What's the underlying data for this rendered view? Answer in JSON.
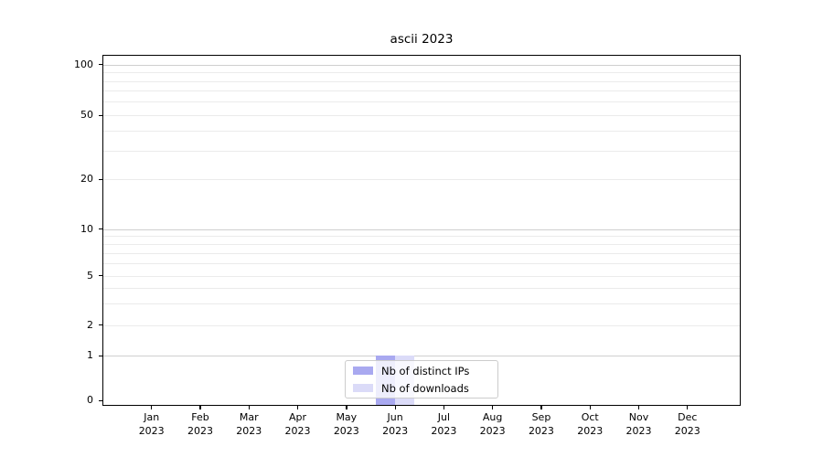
{
  "chart_data": {
    "type": "bar",
    "title": "ascii 2023",
    "x_tick_months": [
      "Jan",
      "Feb",
      "Mar",
      "Apr",
      "May",
      "Jun",
      "Jul",
      "Aug",
      "Sep",
      "Oct",
      "Nov",
      "Dec"
    ],
    "x_tick_year": "2023",
    "y_ticks": [
      0,
      1,
      2,
      5,
      10,
      20,
      50,
      100
    ],
    "y_minor_ticks": [
      3,
      4,
      6,
      7,
      8,
      9,
      30,
      40,
      60,
      70,
      80,
      90
    ],
    "y_scale": "symlog",
    "ylim": [
      0,
      115
    ],
    "grid": "horizontal",
    "legend_position": "bottom-center",
    "categories": [
      "Jan 2023",
      "Feb 2023",
      "Mar 2023",
      "Apr 2023",
      "May 2023",
      "Jun 2023",
      "Jul 2023",
      "Aug 2023",
      "Sep 2023",
      "Oct 2023",
      "Nov 2023",
      "Dec 2023"
    ],
    "series": [
      {
        "name": "Nb of distinct IPs",
        "color": "#a9a9f0",
        "values": [
          0,
          0,
          0,
          0,
          0,
          1,
          0,
          0,
          0,
          0,
          0,
          0
        ]
      },
      {
        "name": "Nb of downloads",
        "color": "#dbdbf8",
        "values": [
          0,
          0,
          0,
          0,
          0,
          1,
          0,
          0,
          0,
          0,
          0,
          0
        ]
      }
    ],
    "colors": {
      "axis": "#000000",
      "grid_major": "#cfcfcf",
      "grid_minor": "#ebebeb",
      "background": "#ffffff",
      "legend_border": "#cccccc"
    }
  }
}
